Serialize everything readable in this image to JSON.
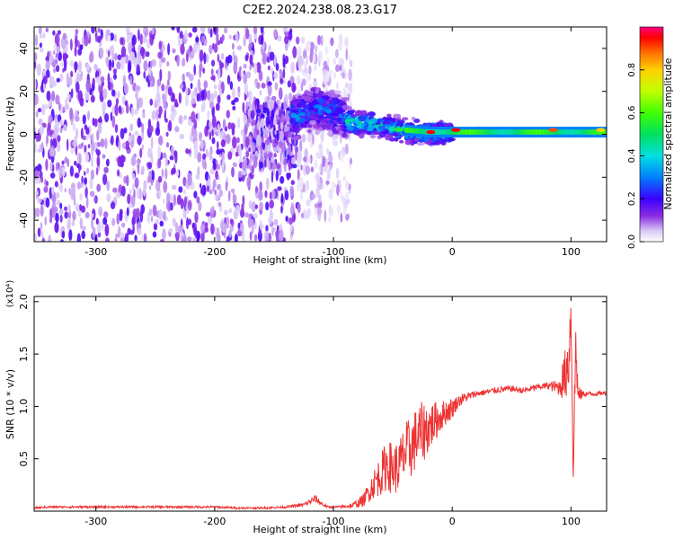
{
  "chart_data": [
    {
      "type": "heatmap",
      "title": "C2E2.2024.238.08.23.G17",
      "xlabel": "Height of straight line (km)",
      "ylabel": "Frequency (Hz)",
      "xlim": [
        -352,
        130
      ],
      "ylim": [
        -50,
        50
      ],
      "x_ticks": [
        -300,
        -200,
        -100,
        0,
        100
      ],
      "x_tick_labels": [
        "-300",
        "-200",
        "-100",
        "0",
        "100"
      ],
      "y_ticks": [
        -40,
        -20,
        0,
        20,
        40
      ],
      "y_tick_labels": [
        "-40",
        "-20",
        "0",
        "20",
        "40"
      ],
      "colorbar": {
        "label": "Normalized spectral amplitude",
        "range": [
          0,
          1
        ],
        "ticks": [
          0,
          0.2,
          0.4,
          0.6,
          0.8
        ],
        "tick_labels": [
          "0.0",
          "0.2",
          "0.4",
          "0.6",
          "0.8"
        ],
        "colormap": "rainbow"
      },
      "features": [
        {
          "x_range": [
            -352,
            -130
          ],
          "freq_range": [
            -50,
            50
          ],
          "amplitude": 0.1,
          "note_type": "noise"
        },
        {
          "x_range": [
            -130,
            -85
          ],
          "freq_range": [
            -40,
            45
          ],
          "amplitude": 0.05,
          "note_type": "sparse-noise"
        },
        {
          "x_range": [
            -175,
            -130
          ],
          "freq_range": [
            -15,
            15
          ],
          "amplitude": 0.12,
          "note_type": "cluster"
        },
        {
          "x_range": [
            -135,
            -90
          ],
          "freq_range": [
            -5,
            18
          ],
          "amplitude": 0.3,
          "note_type": "signal"
        },
        {
          "x_range": [
            -90,
            0
          ],
          "freq_range": [
            -3,
            10
          ],
          "amplitude": 0.45,
          "note_type": "signal"
        },
        {
          "x_range": [
            0,
            130
          ],
          "freq_range": [
            0,
            3
          ],
          "amplitude": 0.6,
          "note_type": "signal"
        }
      ],
      "signal_center": [
        {
          "x": -130,
          "f": 8
        },
        {
          "x": -115,
          "f": 13
        },
        {
          "x": -100,
          "f": 10
        },
        {
          "x": -85,
          "f": 6
        },
        {
          "x": -60,
          "f": 4
        },
        {
          "x": -40,
          "f": 2
        },
        {
          "x": -20,
          "f": 1
        },
        {
          "x": 0,
          "f": 1
        },
        {
          "x": 130,
          "f": 1
        }
      ],
      "hot_spots": [
        {
          "x": -113,
          "f": 13,
          "amplitude": 0.3
        },
        {
          "x": -45,
          "f": 2,
          "amplitude": 0.55
        },
        {
          "x": -18,
          "f": 1,
          "amplitude": 0.95
        },
        {
          "x": 3,
          "f": 2,
          "amplitude": 0.95
        },
        {
          "x": 85,
          "f": 2,
          "amplitude": 0.9
        },
        {
          "x": 125,
          "f": 2,
          "amplitude": 0.8
        }
      ]
    },
    {
      "type": "line",
      "xlabel": "Height of straight line (km)",
      "ylabel": "SNR (10 * v/v)",
      "exponent_label": "(x10⁴)",
      "xlim": [
        -352,
        130
      ],
      "ylim": [
        0,
        2.05
      ],
      "x_ticks": [
        -300,
        -200,
        -100,
        0,
        100
      ],
      "x_tick_labels": [
        "-300",
        "-200",
        "-100",
        "0",
        "100"
      ],
      "y_ticks": [
        0.5,
        1.0,
        1.5,
        2.0
      ],
      "y_tick_labels": [
        "0.5",
        "1.0",
        "1.5",
        "2.0"
      ],
      "series": [
        {
          "color": "#ee3333",
          "x": [
            -352,
            -340,
            -320,
            -300,
            -280,
            -260,
            -240,
            -220,
            -200,
            -180,
            -160,
            -140,
            -125,
            -115,
            -110,
            -105,
            -95,
            -85,
            -75,
            -65,
            -60,
            -55,
            -50,
            -45,
            -40,
            -35,
            -30,
            -25,
            -20,
            -15,
            -10,
            -5,
            0,
            5,
            10,
            20,
            30,
            40,
            50,
            60,
            70,
            80,
            90,
            95,
            98,
            100,
            102,
            104,
            106,
            110,
            120,
            130
          ],
          "y": [
            0.03,
            0.04,
            0.04,
            0.04,
            0.04,
            0.04,
            0.04,
            0.04,
            0.04,
            0.03,
            0.03,
            0.04,
            0.06,
            0.12,
            0.07,
            0.04,
            0.04,
            0.05,
            0.1,
            0.28,
            0.35,
            0.45,
            0.4,
            0.42,
            0.55,
            0.6,
            0.7,
            0.75,
            0.8,
            0.85,
            0.9,
            0.95,
            0.98,
            1.05,
            1.08,
            1.12,
            1.14,
            1.16,
            1.17,
            1.15,
            1.18,
            1.2,
            1.18,
            1.3,
            1.45,
            1.9,
            0.4,
            1.6,
            1.1,
            1.12,
            1.12,
            1.13
          ],
          "noise_amplitude": [
            0.01,
            0.01,
            0.01,
            0.01,
            0.01,
            0.01,
            0.01,
            0.01,
            0.01,
            0.01,
            0.01,
            0.01,
            0.02,
            0.04,
            0.02,
            0.01,
            0.01,
            0.02,
            0.06,
            0.15,
            0.2,
            0.25,
            0.25,
            0.25,
            0.3,
            0.3,
            0.3,
            0.3,
            0.25,
            0.2,
            0.15,
            0.12,
            0.1,
            0.06,
            0.05,
            0.03,
            0.03,
            0.03,
            0.03,
            0.03,
            0.03,
            0.03,
            0.08,
            0.25,
            0.35,
            0.2,
            0.3,
            0.3,
            0.1,
            0.03,
            0.02,
            0.02
          ]
        }
      ]
    }
  ]
}
